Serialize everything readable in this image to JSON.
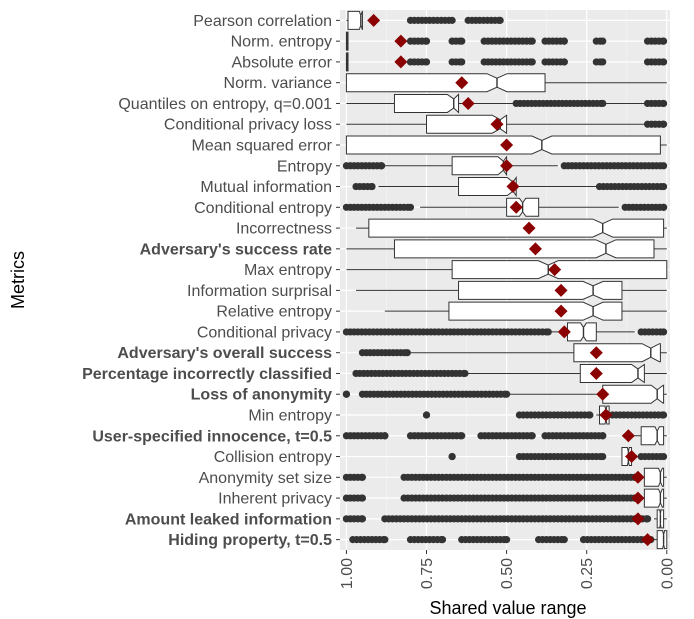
{
  "chart_data": {
    "type": "boxplot",
    "title": "",
    "xlabel": "Shared value range",
    "ylabel": "Metrics",
    "x_reversed": true,
    "xlim": [
      1.02,
      -0.01
    ],
    "xticks": [
      {
        "value": 1.0,
        "label": "1.00"
      },
      {
        "value": 0.75,
        "label": "0.75"
      },
      {
        "value": 0.5,
        "label": "0.50"
      },
      {
        "value": 0.25,
        "label": "0.25"
      },
      {
        "value": 0.0,
        "label": "0.00"
      }
    ],
    "grid": true,
    "background": "#ebebeb",
    "box_color": "#333333",
    "mean_color": "#8b0000",
    "outlier_color": "#333333",
    "metrics": [
      {
        "name": "Pearson correlation",
        "bold": false,
        "whisker_lo": 0.95,
        "q1": 0.95,
        "median": 0.955,
        "q3": 0.995,
        "whisker_hi": 1.0,
        "mean": 0.915,
        "outliers": [
          [
            0.8,
            0.67
          ],
          [
            0.62,
            0.52
          ]
        ]
      },
      {
        "name": "Norm. entropy",
        "bold": false,
        "whisker_lo": 0.995,
        "q1": 0.995,
        "median": 0.998,
        "q3": 1.0,
        "whisker_hi": 1.0,
        "mean": 0.83,
        "outliers": [
          [
            0.8,
            0.75
          ],
          [
            0.67,
            0.64
          ],
          [
            0.57,
            0.42
          ],
          [
            0.38,
            0.32
          ],
          [
            0.22,
            0.2
          ],
          [
            0.06,
            0.01
          ]
        ]
      },
      {
        "name": "Absolute error",
        "bold": false,
        "whisker_lo": 0.995,
        "q1": 0.995,
        "median": 0.998,
        "q3": 1.0,
        "whisker_hi": 1.0,
        "mean": 0.83,
        "outliers": [
          [
            0.8,
            0.75
          ],
          [
            0.67,
            0.64
          ],
          [
            0.57,
            0.42
          ],
          [
            0.38,
            0.32
          ],
          [
            0.22,
            0.2
          ],
          [
            0.06,
            0.01
          ]
        ]
      },
      {
        "name": "Norm. variance",
        "bold": false,
        "whisker_lo": 0.0,
        "q1": 0.38,
        "median": 0.53,
        "q3": 1.0,
        "whisker_hi": 1.0,
        "mean": 0.64,
        "outliers": []
      },
      {
        "name": "Quantiles on entropy, q=0.001",
        "bold": false,
        "whisker_lo": 0.01,
        "q1": 0.65,
        "median": 0.665,
        "q3": 0.85,
        "whisker_hi": 1.0,
        "mean": 0.62,
        "outliers": [
          [
            0.47,
            0.2
          ],
          [
            0.06,
            0.01
          ]
        ]
      },
      {
        "name": "Conditional privacy loss",
        "bold": false,
        "whisker_lo": 0.07,
        "q1": 0.5,
        "median": 0.52,
        "q3": 0.75,
        "whisker_hi": 1.0,
        "mean": 0.53,
        "outliers": [
          [
            0.06,
            0.01
          ]
        ]
      },
      {
        "name": "Mean squared error",
        "bold": false,
        "whisker_lo": 0.0,
        "q1": 0.02,
        "median": 0.39,
        "q3": 1.0,
        "whisker_hi": 1.0,
        "mean": 0.5,
        "outliers": []
      },
      {
        "name": "Entropy",
        "bold": false,
        "whisker_lo": 0.34,
        "q1": 0.5,
        "median": 0.51,
        "q3": 0.67,
        "whisker_hi": 0.9,
        "mean": 0.5,
        "outliers": [
          [
            1.0,
            0.89
          ],
          [
            0.32,
            0.01
          ]
        ]
      },
      {
        "name": "Mutual information",
        "bold": false,
        "whisker_lo": 0.22,
        "q1": 0.47,
        "median": 0.48,
        "q3": 0.65,
        "whisker_hi": 0.9,
        "mean": 0.48,
        "outliers": [
          [
            0.97,
            0.92
          ],
          [
            0.21,
            0.01
          ]
        ]
      },
      {
        "name": "Conditional entropy",
        "bold": false,
        "whisker_lo": 0.15,
        "q1": 0.4,
        "median": 0.45,
        "q3": 0.5,
        "whisker_hi": 0.77,
        "mean": 0.47,
        "outliers": [
          [
            1.0,
            0.8
          ],
          [
            0.13,
            0.01
          ]
        ]
      },
      {
        "name": "Incorrectness",
        "bold": false,
        "whisker_lo": 0.0,
        "q1": 0.01,
        "median": 0.2,
        "q3": 0.93,
        "whisker_hi": 0.97,
        "mean": 0.43,
        "outliers": []
      },
      {
        "name": "Adversary's success rate",
        "bold": true,
        "whisker_lo": 0.0,
        "q1": 0.04,
        "median": 0.19,
        "q3": 0.85,
        "whisker_hi": 1.0,
        "mean": 0.41,
        "outliers": []
      },
      {
        "name": "Max entropy",
        "bold": false,
        "whisker_lo": 0.0,
        "q1": 0.0,
        "median": 0.37,
        "q3": 0.67,
        "whisker_hi": 1.0,
        "mean": 0.35,
        "outliers": []
      },
      {
        "name": "Information surprisal",
        "bold": false,
        "whisker_lo": 0.0,
        "q1": 0.14,
        "median": 0.23,
        "q3": 0.65,
        "whisker_hi": 0.97,
        "mean": 0.33,
        "outliers": []
      },
      {
        "name": "Relative entropy",
        "bold": false,
        "whisker_lo": 0.0,
        "q1": 0.14,
        "median": 0.23,
        "q3": 0.68,
        "whisker_hi": 0.88,
        "mean": 0.33,
        "outliers": []
      },
      {
        "name": "Conditional privacy",
        "bold": false,
        "whisker_lo": 0.1,
        "q1": 0.22,
        "median": 0.26,
        "q3": 0.31,
        "whisker_hi": 0.36,
        "mean": 0.32,
        "outliers": [
          [
            1.0,
            0.37
          ],
          [
            0.08,
            0.01
          ]
        ]
      },
      {
        "name": "Adversary's overall success",
        "bold": true,
        "whisker_lo": 0.0,
        "q1": 0.02,
        "median": 0.05,
        "q3": 0.29,
        "whisker_hi": 0.8,
        "mean": 0.22,
        "outliers": [
          [
            0.95,
            0.81
          ]
        ]
      },
      {
        "name": "Percentage incorrectly classified",
        "bold": true,
        "whisker_lo": 0.0,
        "q1": 0.07,
        "median": 0.09,
        "q3": 0.27,
        "whisker_hi": 0.62,
        "mean": 0.22,
        "outliers": [
          [
            0.97,
            0.63
          ]
        ]
      },
      {
        "name": "Loss of anonymity",
        "bold": true,
        "whisker_lo": 0.0,
        "q1": 0.01,
        "median": 0.03,
        "q3": 0.2,
        "whisker_hi": 0.5,
        "mean": 0.2,
        "outliers": [
          [
            1.0,
            1.0
          ],
          [
            0.95,
            0.5
          ]
        ]
      },
      {
        "name": "Min entropy",
        "bold": false,
        "whisker_lo": 0.0,
        "q1": 0.18,
        "median": 0.19,
        "q3": 0.21,
        "whisker_hi": 0.22,
        "mean": 0.19,
        "outliers": [
          [
            0.75,
            0.75
          ],
          [
            0.46,
            0.24
          ],
          [
            0.17,
            0.01
          ]
        ]
      },
      {
        "name": "User-specified innocence, t=0.5",
        "bold": true,
        "whisker_lo": 0.0,
        "q1": 0.01,
        "median": 0.03,
        "q3": 0.08,
        "whisker_hi": 0.14,
        "mean": 0.12,
        "outliers": [
          [
            1.0,
            0.88
          ],
          [
            0.8,
            0.64
          ],
          [
            0.58,
            0.42
          ],
          [
            0.38,
            0.2
          ]
        ]
      },
      {
        "name": "Collision entropy",
        "bold": false,
        "whisker_lo": 0.0,
        "q1": 0.11,
        "median": 0.12,
        "q3": 0.14,
        "whisker_hi": 0.14,
        "mean": 0.11,
        "outliers": [
          [
            0.67,
            0.67
          ],
          [
            0.46,
            0.2
          ],
          [
            0.08,
            0.01
          ]
        ]
      },
      {
        "name": "Anonymity set size",
        "bold": false,
        "whisker_lo": 0.0,
        "q1": 0.01,
        "median": 0.02,
        "q3": 0.07,
        "whisker_hi": 0.08,
        "mean": 0.09,
        "outliers": [
          [
            1.0,
            0.95
          ],
          [
            0.82,
            0.1
          ]
        ]
      },
      {
        "name": "Inherent privacy",
        "bold": false,
        "whisker_lo": 0.0,
        "q1": 0.01,
        "median": 0.02,
        "q3": 0.07,
        "whisker_hi": 0.08,
        "mean": 0.09,
        "outliers": [
          [
            1.0,
            0.95
          ],
          [
            0.82,
            0.1
          ]
        ]
      },
      {
        "name": "Amount leaked information",
        "bold": true,
        "whisker_lo": 0.0,
        "q1": 0.01,
        "median": 0.02,
        "q3": 0.03,
        "whisker_hi": 0.04,
        "mean": 0.09,
        "outliers": [
          [
            1.0,
            0.95
          ],
          [
            0.88,
            0.06
          ]
        ]
      },
      {
        "name": "Hiding property, t=0.5",
        "bold": true,
        "whisker_lo": 0.0,
        "q1": 0.0,
        "median": 0.01,
        "q3": 0.03,
        "whisker_hi": 0.04,
        "mean": 0.06,
        "outliers": [
          [
            0.98,
            0.88
          ],
          [
            0.8,
            0.7
          ],
          [
            0.64,
            0.5
          ],
          [
            0.4,
            0.32
          ],
          [
            0.26,
            0.05
          ]
        ]
      }
    ]
  }
}
